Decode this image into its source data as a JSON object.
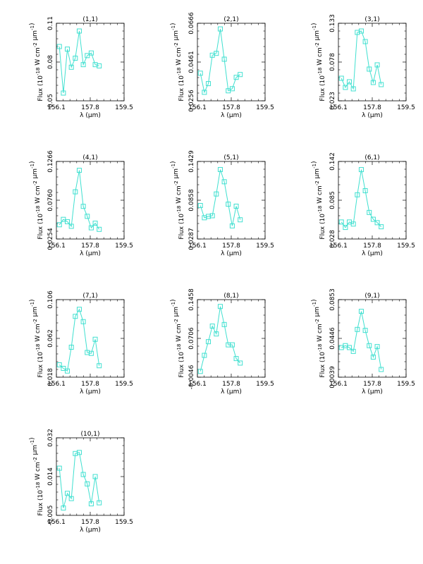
{
  "chart_data": [
    {
      "type": "line",
      "title": "(1,1)",
      "xlabel": "λ (μm)",
      "ylabel": "Flux (10^-18 W cm^-2 μm^-1)",
      "xlim": [
        156.1,
        159.5
      ],
      "ylim": [
        0.05,
        0.11
      ],
      "xticks": [
        "156.1",
        "157.8",
        "159.5"
      ],
      "yticks": [
        "0.05",
        "0.08",
        "0.11"
      ],
      "color": "#40e0d0",
      "x": [
        156.25,
        156.45,
        156.65,
        156.85,
        157.05,
        157.25,
        157.45,
        157.65,
        157.85,
        158.05,
        158.25
      ],
      "y": [
        0.092,
        0.056,
        0.09,
        0.076,
        0.083,
        0.104,
        0.078,
        0.085,
        0.087,
        0.078,
        0.077
      ]
    },
    {
      "type": "line",
      "title": "(2,1)",
      "xlabel": "λ (μm)",
      "ylabel": "Flux (10^-18 W cm^-2 μm^-1)",
      "xlim": [
        156.1,
        159.5
      ],
      "ylim": [
        0.0256,
        0.0666
      ],
      "xticks": [
        "156.1",
        "157.8",
        "159.5"
      ],
      "yticks": [
        "0.0256",
        "0.0461",
        "0.0666"
      ],
      "color": "#40e0d0",
      "x": [
        156.25,
        156.45,
        156.65,
        156.85,
        157.05,
        157.25,
        157.45,
        157.65,
        157.85,
        158.05,
        158.25
      ],
      "y": [
        0.0402,
        0.0301,
        0.0347,
        0.0497,
        0.0507,
        0.0636,
        0.0476,
        0.0309,
        0.032,
        0.038,
        0.0395
      ]
    },
    {
      "type": "line",
      "title": "(3,1)",
      "xlabel": "λ (μm)",
      "ylabel": "Flux (10^-18 W cm^-2 μm^-1)",
      "xlim": [
        156.1,
        159.5
      ],
      "ylim": [
        0.023,
        0.133
      ],
      "xticks": [
        "156.1",
        "157.8",
        "159.5"
      ],
      "yticks": [
        "0.023",
        "0.078",
        "0.133"
      ],
      "color": "#40e0d0",
      "x": [
        156.25,
        156.45,
        156.65,
        156.85,
        157.05,
        157.25,
        157.45,
        157.65,
        157.85,
        158.05,
        158.25
      ],
      "y": [
        0.055,
        0.042,
        0.05,
        0.04,
        0.12,
        0.122,
        0.107,
        0.068,
        0.049,
        0.074,
        0.046
      ]
    },
    {
      "type": "line",
      "title": "(4,1)",
      "xlabel": "λ (μm)",
      "ylabel": "Flux (10^-18 W cm^-2 μm^-1)",
      "xlim": [
        156.1,
        159.5
      ],
      "ylim": [
        0.0254,
        0.1266
      ],
      "xticks": [
        "156.1",
        "157.8",
        "159.5"
      ],
      "yticks": [
        "0.0254",
        "0.0760",
        "0.1266"
      ],
      "color": "#40e0d0",
      "x": [
        156.25,
        156.45,
        156.65,
        156.85,
        157.05,
        157.25,
        157.45,
        157.65,
        157.85,
        158.05,
        158.25
      ],
      "y": [
        0.044,
        0.051,
        0.048,
        0.042,
        0.087,
        0.115,
        0.068,
        0.055,
        0.04,
        0.046,
        0.038
      ]
    },
    {
      "type": "line",
      "title": "(5,1)",
      "xlabel": "λ (μm)",
      "ylabel": "Flux (10^-18 W cm^-2 μm^-1)",
      "xlim": [
        156.1,
        159.5
      ],
      "ylim": [
        0.0287,
        0.1429
      ],
      "xticks": [
        "156.1",
        "157.8",
        "159.5"
      ],
      "yticks": [
        "0.0287",
        "0.0858",
        "0.1429"
      ],
      "color": "#40e0d0",
      "x": [
        156.25,
        156.45,
        156.65,
        156.85,
        157.05,
        157.25,
        157.45,
        157.65,
        157.85,
        158.05,
        158.25
      ],
      "y": [
        0.078,
        0.06,
        0.062,
        0.063,
        0.095,
        0.131,
        0.113,
        0.08,
        0.048,
        0.077,
        0.057
      ]
    },
    {
      "type": "line",
      "title": "(6,1)",
      "xlabel": "λ (μm)",
      "ylabel": "Flux (10^-18 W cm^-2 μm^-1)",
      "xlim": [
        156.1,
        159.5
      ],
      "ylim": [
        0.028,
        0.142
      ],
      "xticks": [
        "156.1",
        "157.8",
        "159.5"
      ],
      "yticks": [
        "0.028",
        "0.085",
        "0.142"
      ],
      "color": "#40e0d0",
      "x": [
        156.25,
        156.45,
        156.65,
        156.85,
        157.05,
        157.25,
        157.45,
        157.65,
        157.85,
        158.05,
        158.25
      ],
      "y": [
        0.053,
        0.045,
        0.053,
        0.05,
        0.093,
        0.13,
        0.099,
        0.067,
        0.057,
        0.052,
        0.046
      ]
    },
    {
      "type": "line",
      "title": "(7,1)",
      "xlabel": "λ (μm)",
      "ylabel": "Flux (10^-18 W cm^-2 μm^-1)",
      "xlim": [
        156.1,
        159.5
      ],
      "ylim": [
        0.018,
        0.106
      ],
      "xticks": [
        "156.1",
        "157.8",
        "159.5"
      ],
      "yticks": [
        "0.018",
        "0.062",
        "0.106"
      ],
      "color": "#40e0d0",
      "x": [
        156.25,
        156.45,
        156.65,
        156.85,
        157.05,
        157.25,
        157.45,
        157.65,
        157.85,
        158.05,
        158.25
      ],
      "y": [
        0.032,
        0.028,
        0.025,
        0.052,
        0.087,
        0.095,
        0.081,
        0.046,
        0.045,
        0.061,
        0.031
      ]
    },
    {
      "type": "line",
      "title": "(8,1)",
      "xlabel": "λ (μm)",
      "ylabel": "Flux (10^-18 W cm^-2 μm^-1)",
      "xlim": [
        156.1,
        159.5
      ],
      "ylim": [
        -0.0046,
        0.1458
      ],
      "xticks": [
        "156.1",
        "157.8",
        "159.5"
      ],
      "yticks": [
        "-0.0046",
        "0.0706",
        "0.1458"
      ],
      "color": "#40e0d0",
      "x": [
        156.25,
        156.45,
        156.65,
        156.85,
        157.05,
        157.25,
        157.45,
        157.65,
        157.85,
        158.05,
        158.25
      ],
      "y": [
        0.0066,
        0.0377,
        0.0642,
        0.0945,
        0.0793,
        0.1325,
        0.0975,
        0.0581,
        0.0581,
        0.0315,
        0.0228
      ]
    },
    {
      "type": "line",
      "title": "(9,1)",
      "xlabel": "λ (μm)",
      "ylabel": "Flux (10^-18 W cm^-2 μm^-1)",
      "xlim": [
        156.1,
        159.5
      ],
      "ylim": [
        0.0039,
        0.0853
      ],
      "xticks": [
        "156.1",
        "157.8",
        "159.5"
      ],
      "yticks": [
        "0.0039",
        "0.0446",
        "0.0853"
      ],
      "color": "#40e0d0",
      "x": [
        156.25,
        156.45,
        156.65,
        156.85,
        157.05,
        157.25,
        157.45,
        157.65,
        157.85,
        158.05,
        158.25
      ],
      "y": [
        0.035,
        0.037,
        0.035,
        0.031,
        0.054,
        0.073,
        0.053,
        0.037,
        0.025,
        0.036,
        0.012
      ]
    },
    {
      "type": "line",
      "title": "(10,1)",
      "xlabel": "λ (μm)",
      "ylabel": "Flux (10^-18 W cm^-2 μm^-1)",
      "xlim": [
        156.1,
        159.5
      ],
      "ylim": [
        -0.005,
        0.032
      ],
      "xticks": [
        "156.1",
        "157.8",
        "159.5"
      ],
      "yticks": [
        "-0.005",
        "0.014",
        "0.032"
      ],
      "color": "#40e0d0",
      "x": [
        156.25,
        156.45,
        156.65,
        156.85,
        157.05,
        157.25,
        157.45,
        157.65,
        157.85,
        158.05,
        158.25
      ],
      "y": [
        0.0175,
        -0.0015,
        0.0055,
        0.003,
        0.0245,
        0.025,
        0.0145,
        0.01,
        0.0005,
        0.0135,
        0.001
      ]
    }
  ]
}
